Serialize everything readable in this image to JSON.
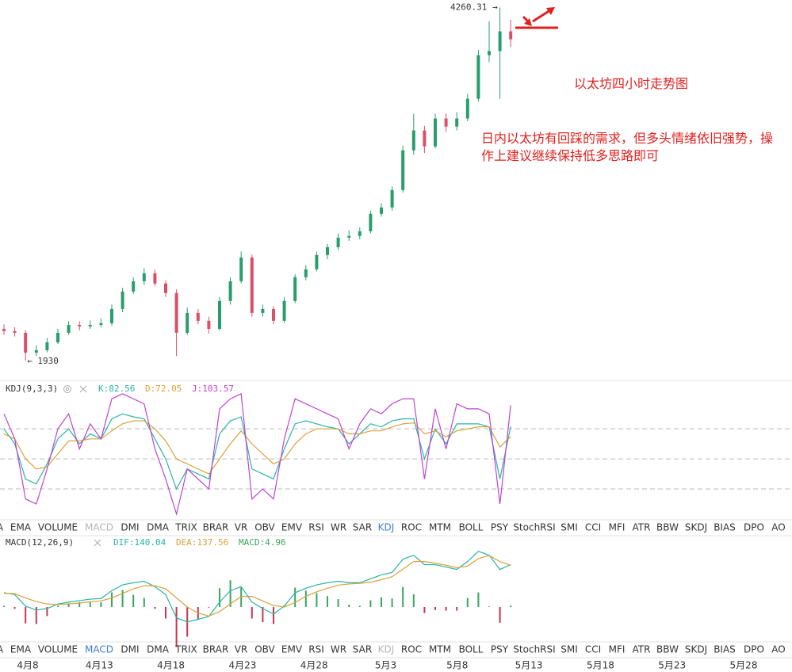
{
  "chart_data": [
    {
      "type": "candlestick",
      "title_note": "以太坊四小时走势图",
      "comment": "日内以太坊有回踩的需求，但多头情绪依旧强势，操作上建议继续保持低多思路即可",
      "high_label": "4260.31 →",
      "low_label": "← 1930",
      "up_color": "#2a9d6e",
      "down_color": "#d9506b",
      "ylim": [
        1800,
        4310
      ],
      "candles": [
        [
          2140,
          2170,
          2100,
          2125
        ],
        [
          2125,
          2150,
          2090,
          2114
        ],
        [
          2114,
          2130,
          1930,
          1983
        ],
        [
          1983,
          2030,
          1960,
          1999
        ],
        [
          1999,
          2080,
          1985,
          2051
        ],
        [
          2051,
          2140,
          2040,
          2114
        ],
        [
          2114,
          2190,
          2100,
          2166
        ],
        [
          2166,
          2190,
          2130,
          2156
        ],
        [
          2156,
          2195,
          2140,
          2166
        ],
        [
          2166,
          2210,
          2150,
          2177
        ],
        [
          2177,
          2300,
          2160,
          2271
        ],
        [
          2271,
          2410,
          2250,
          2386
        ],
        [
          2386,
          2480,
          2370,
          2454
        ],
        [
          2454,
          2540,
          2430,
          2507
        ],
        [
          2507,
          2530,
          2420,
          2439
        ],
        [
          2439,
          2460,
          2350,
          2376
        ],
        [
          2376,
          2400,
          1960,
          2114
        ],
        [
          2114,
          2280,
          2100,
          2245
        ],
        [
          2245,
          2270,
          2170,
          2193
        ],
        [
          2193,
          2220,
          2110,
          2140
        ],
        [
          2140,
          2350,
          2130,
          2324
        ],
        [
          2324,
          2480,
          2300,
          2454
        ],
        [
          2454,
          2650,
          2440,
          2611
        ],
        [
          2611,
          2630,
          2220,
          2245
        ],
        [
          2245,
          2300,
          2220,
          2271
        ],
        [
          2271,
          2290,
          2170,
          2193
        ],
        [
          2193,
          2350,
          2180,
          2324
        ],
        [
          2324,
          2500,
          2310,
          2481
        ],
        [
          2481,
          2560,
          2460,
          2533
        ],
        [
          2533,
          2650,
          2520,
          2627
        ],
        [
          2627,
          2700,
          2600,
          2679
        ],
        [
          2679,
          2770,
          2660,
          2742
        ],
        [
          2742,
          2790,
          2720,
          2753
        ],
        [
          2753,
          2810,
          2730,
          2784
        ],
        [
          2784,
          2920,
          2770,
          2899
        ],
        [
          2899,
          2970,
          2880,
          2941
        ],
        [
          2941,
          3080,
          2920,
          3056
        ],
        [
          3056,
          3350,
          3040,
          3318
        ],
        [
          3318,
          3560,
          3290,
          3449
        ],
        [
          3449,
          3480,
          3300,
          3344
        ],
        [
          3344,
          3560,
          3330,
          3528
        ],
        [
          3528,
          3560,
          3440,
          3475
        ],
        [
          3475,
          3570,
          3450,
          3528
        ],
        [
          3528,
          3690,
          3510,
          3658
        ],
        [
          3658,
          3980,
          3640,
          3946
        ],
        [
          3946,
          4170,
          3900,
          3973
        ],
        [
          3973,
          4260,
          3658,
          4103
        ],
        [
          4103,
          4180,
          4000,
          4051
        ]
      ]
    },
    {
      "type": "line",
      "label": "KDJ(9,3,3)",
      "active_tab": "KDJ",
      "ylim": [
        -10,
        126
      ],
      "levels": [
        20,
        50,
        80
      ],
      "series": [
        {
          "name": "K:82.56",
          "color": "#2bb3a6",
          "values": [
            80,
            65,
            30,
            25,
            45,
            70,
            80,
            65,
            75,
            70,
            90,
            95,
            92,
            90,
            70,
            50,
            20,
            40,
            35,
            30,
            75,
            88,
            92,
            40,
            35,
            30,
            60,
            85,
            88,
            85,
            82,
            80,
            65,
            75,
            85,
            82,
            88,
            90,
            90,
            50,
            80,
            65,
            85,
            85,
            85,
            82,
            30,
            82.56
          ]
        },
        {
          "name": "D:72.05",
          "color": "#d9a23a",
          "values": [
            75,
            70,
            50,
            40,
            42,
            55,
            68,
            68,
            70,
            70,
            78,
            85,
            88,
            88,
            80,
            68,
            50,
            45,
            40,
            35,
            50,
            65,
            78,
            65,
            55,
            45,
            50,
            65,
            75,
            80,
            80,
            80,
            75,
            75,
            78,
            78,
            82,
            85,
            86,
            75,
            78,
            72,
            78,
            80,
            82,
            82,
            62,
            72.05
          ]
        },
        {
          "name": "J:103.57",
          "color": "#c043d3",
          "values": [
            95,
            70,
            10,
            5,
            40,
            80,
            95,
            60,
            85,
            70,
            110,
            115,
            110,
            105,
            60,
            30,
            -5,
            40,
            30,
            20,
            100,
            110,
            115,
            10,
            20,
            10,
            70,
            110,
            105,
            100,
            95,
            90,
            60,
            85,
            100,
            95,
            105,
            110,
            110,
            30,
            100,
            60,
            105,
            100,
            100,
            95,
            5,
            103.57
          ]
        }
      ]
    },
    {
      "type": "macd",
      "label": "MACD(12,26,9)",
      "active_tab": "MACD",
      "ylim": [
        -110,
        225
      ],
      "up_color": "#3aa55f",
      "down_color": "#c8354e",
      "series": [
        {
          "name": "DIF:140.04",
          "color": "#2bb3a6",
          "values": [
            47,
            41,
            3,
            -10,
            -5,
            10,
            16,
            21,
            26,
            28,
            54,
            73,
            80,
            85,
            67,
            41,
            -36,
            -49,
            -41,
            -31,
            16,
            54,
            67,
            16,
            -5,
            -23,
            3,
            47,
            62,
            73,
            80,
            85,
            80,
            80,
            93,
            106,
            114,
            158,
            171,
            140,
            140,
            132,
            124,
            150,
            184,
            171,
            124,
            140.04
          ]
        },
        {
          "name": "DEA:137.56",
          "color": "#d9a23a",
          "values": [
            45,
            44,
            30,
            18,
            10,
            8,
            10,
            13,
            17,
            20,
            30,
            45,
            60,
            70,
            70,
            60,
            30,
            0,
            -20,
            -30,
            -15,
            10,
            35,
            35,
            20,
            5,
            0,
            15,
            35,
            50,
            62,
            72,
            76,
            78,
            82,
            90,
            100,
            125,
            150,
            150,
            145,
            138,
            130,
            135,
            160,
            170,
            150,
            137.56
          ]
        }
      ],
      "histogram": {
        "name": "MACD:4.96",
        "color": "#3aa55f",
        "values": [
          4,
          -6,
          -54,
          -56,
          -30,
          4,
          12,
          16,
          18,
          16,
          48,
          56,
          40,
          30,
          -6,
          -38,
          -132,
          -98,
          -42,
          -2,
          62,
          88,
          64,
          -38,
          -50,
          -56,
          6,
          64,
          54,
          46,
          36,
          26,
          8,
          4,
          22,
          32,
          28,
          66,
          42,
          -20,
          -10,
          -12,
          -12,
          30,
          48,
          2,
          -52,
          4.96
        ]
      }
    }
  ],
  "tabs": [
    "A",
    "EMA",
    "VOLUME",
    "MACD",
    "DMI",
    "DMA",
    "TRIX",
    "BRAR",
    "VR",
    "OBV",
    "EMV",
    "RSI",
    "WR",
    "SAR",
    "KDJ",
    "ROC",
    "MTM",
    "BOLL",
    "PSY",
    "StochRSI",
    "SMI",
    "CCI",
    "MFI",
    "ATR",
    "BBW",
    "SKDJ",
    "BIAS",
    "DPO",
    "AO"
  ],
  "dates": [
    "4月8",
    "4月13",
    "4月18",
    "4月23",
    "4月28",
    "5月3",
    "5月8",
    "5月13",
    "5月18",
    "5月23",
    "5月28"
  ]
}
